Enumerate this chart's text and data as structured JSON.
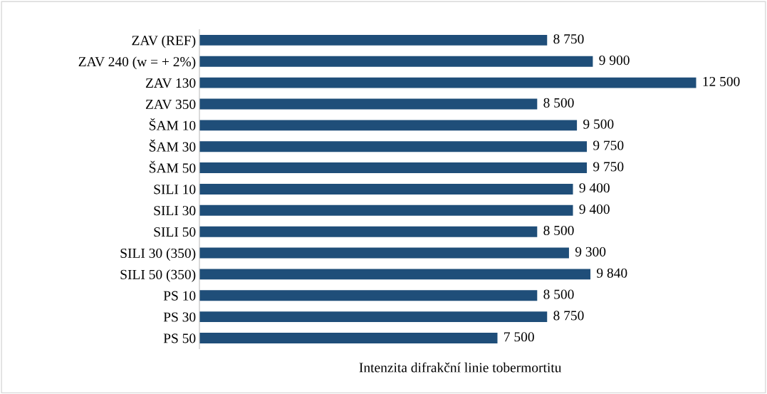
{
  "chart_data": {
    "type": "bar",
    "orientation": "horizontal",
    "xlabel": "Intenzita difrakční linie tobermortitu",
    "categories": [
      "ZAV (REF)",
      "ZAV 240 (w = + 2%)",
      "ZAV 130",
      "ZAV 350",
      "ŠAM 10",
      "ŠAM 30",
      "ŠAM 50",
      "SILI 10",
      "SILI 30",
      "SILI 50",
      "SILI 30 (350)",
      "SILI 50 (350)",
      "PS 10",
      "PS 30",
      "PS 50"
    ],
    "values": [
      8750,
      9900,
      12500,
      8500,
      9500,
      9750,
      9750,
      9400,
      9400,
      8500,
      9300,
      9840,
      8500,
      8750,
      7500
    ],
    "value_labels": [
      "8 750",
      "9 900",
      "12 500",
      "8 500",
      "9 500",
      "9 750",
      "9 750",
      "9 400",
      "9 400",
      "8 500",
      "9 300",
      "9 840",
      "8 500",
      "8 750",
      "7 500"
    ],
    "color": "#1f4e79",
    "tick_labels": "y",
    "grid": false,
    "legend": false
  }
}
